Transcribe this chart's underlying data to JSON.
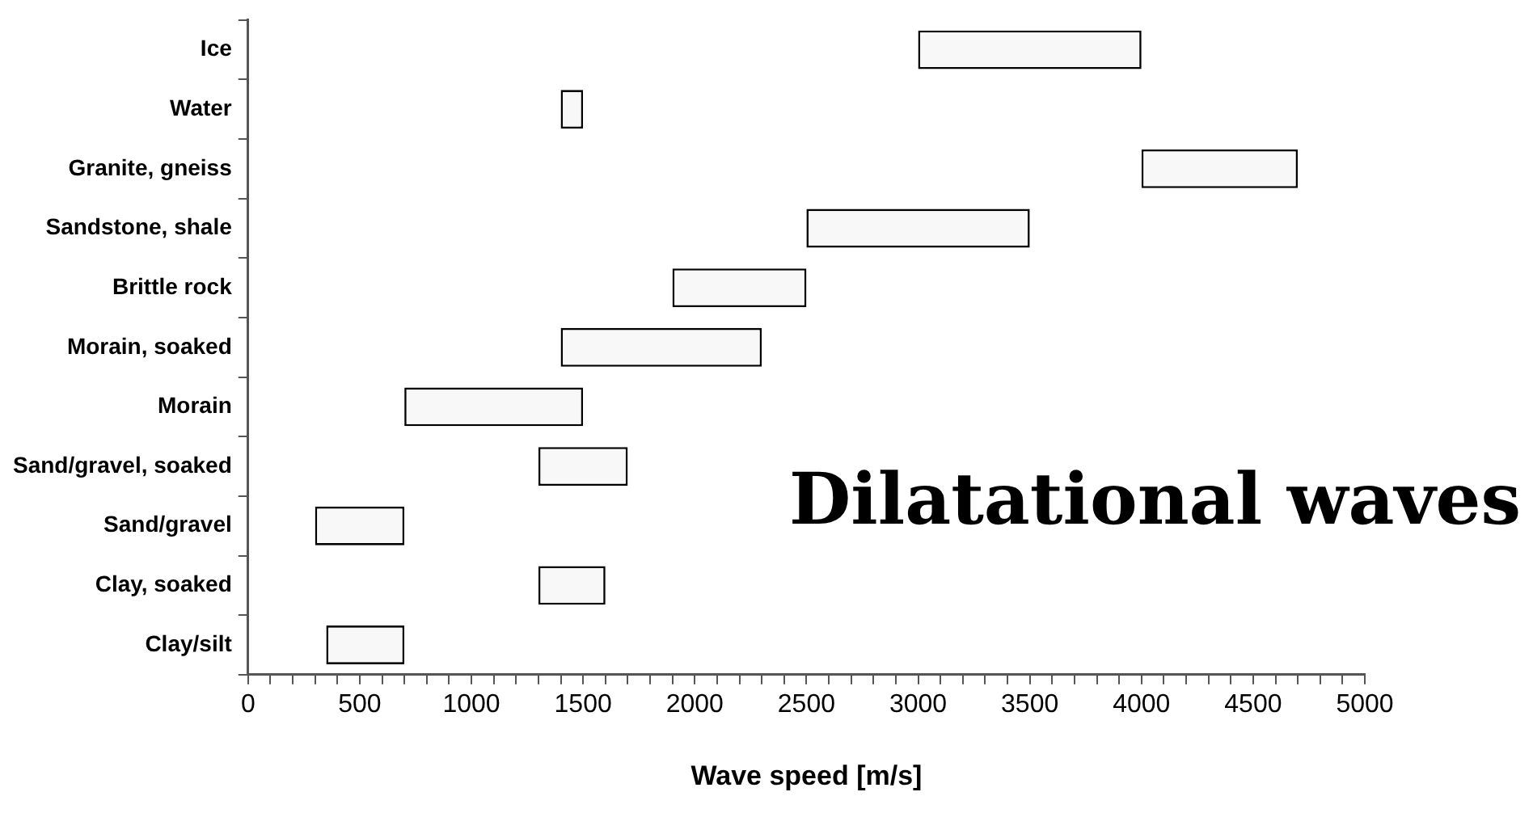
{
  "chart_data": {
    "type": "bar",
    "orientation": "horizontal",
    "xlabel": "Wave speed [m/s]",
    "annotations": [
      "Dilatational waves"
    ],
    "categories": [
      "Ice",
      "Water",
      "Granite, gneiss",
      "Sandstone, shale",
      "Brittle rock",
      "Morain, soaked",
      "Morain",
      "Sand/gravel, soaked",
      "Sand/gravel",
      "Clay, soaked",
      "Clay/silt"
    ],
    "base": [
      3000,
      1400,
      4000,
      2500,
      1900,
      1400,
      700,
      1300,
      300,
      1300,
      350
    ],
    "values": [
      1000,
      100,
      700,
      1000,
      600,
      900,
      800,
      400,
      400,
      300,
      350
    ],
    "color": "#f8f8f8",
    "xlim": [
      0,
      5000
    ],
    "xticks": [
      0,
      {
        "value": 100,
        "label": null
      },
      {
        "value": 200,
        "label": null
      },
      {
        "value": 300,
        "label": null
      },
      {
        "value": 400,
        "label": null
      },
      500,
      {
        "value": 600,
        "label": null
      },
      {
        "value": 700,
        "label": null
      },
      {
        "value": 800,
        "label": null
      },
      {
        "value": 900,
        "label": null
      },
      1000,
      {
        "value": 1100,
        "label": null
      },
      {
        "value": 1200,
        "label": null
      },
      {
        "value": 1300,
        "label": null
      },
      {
        "value": 1400,
        "label": null
      },
      1500,
      {
        "value": 1600,
        "label": null
      },
      {
        "value": 1700,
        "label": null
      },
      {
        "value": 1800,
        "label": null
      },
      {
        "value": 1900,
        "label": null
      },
      2000,
      {
        "value": 2100,
        "label": null
      },
      {
        "value": 2200,
        "label": null
      },
      {
        "value": 2300,
        "label": null
      },
      {
        "value": 2400,
        "label": null
      },
      2500,
      {
        "value": 2600,
        "label": null
      },
      {
        "value": 2700,
        "label": null
      },
      {
        "value": 2800,
        "label": null
      },
      {
        "value": 2900,
        "label": null
      },
      3000,
      {
        "value": 3100,
        "label": null
      },
      {
        "value": 3200,
        "label": null
      },
      {
        "value": 3300,
        "label": null
      },
      {
        "value": 3400,
        "label": null
      },
      3500,
      {
        "value": 3600,
        "label": null
      },
      {
        "value": 3700,
        "label": null
      },
      {
        "value": 3800,
        "label": null
      },
      {
        "value": 3900,
        "label": null
      },
      4000,
      {
        "value": 4100,
        "label": null
      },
      {
        "value": 4200,
        "label": null
      },
      {
        "value": 4300,
        "label": null
      },
      {
        "value": 4400,
        "label": null
      },
      4500,
      {
        "value": 4600,
        "label": null
      },
      {
        "value": 4700,
        "label": null
      },
      {
        "value": 4800,
        "label": null
      },
      {
        "value": 4900,
        "label": null
      },
      5000
    ]
  }
}
